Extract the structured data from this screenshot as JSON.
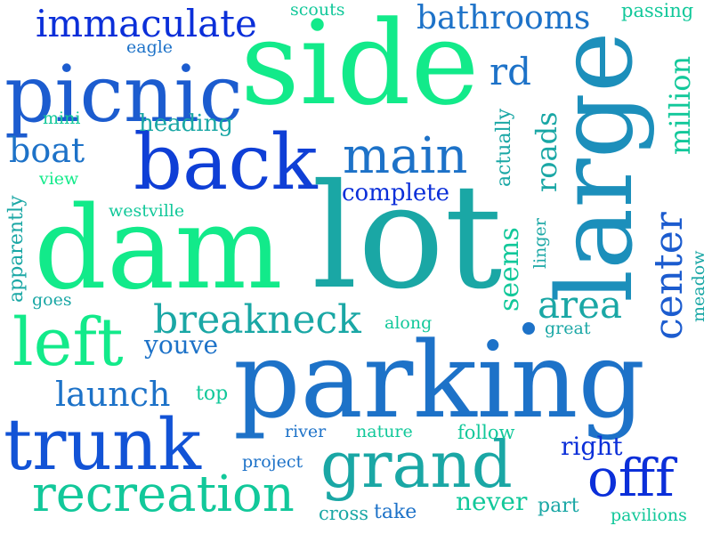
{
  "words": [
    {
      "text": "side",
      "color": "#12ea8a",
      "vertical": false
    },
    {
      "text": "lot",
      "color": "#1aa7a5",
      "vertical": false
    },
    {
      "text": "dam",
      "color": "#12ea8a",
      "vertical": false
    },
    {
      "text": "parking",
      "color": "#1d72c8",
      "vertical": false
    },
    {
      "text": "large",
      "color": "#1c8fbb",
      "vertical": true
    },
    {
      "text": "picnic",
      "color": "#1c5ccf",
      "vertical": false
    },
    {
      "text": "back",
      "color": "#0f3fd6",
      "vertical": false
    },
    {
      "text": "trunk",
      "color": "#1253d6",
      "vertical": false
    },
    {
      "text": "left",
      "color": "#12ea8a",
      "vertical": false
    },
    {
      "text": "grand",
      "color": "#1aa7a5",
      "vertical": false
    },
    {
      "text": "main",
      "color": "#1d72c8",
      "vertical": false
    },
    {
      "text": "recreation",
      "color": "#12c89a",
      "vertical": false
    },
    {
      "text": "offf",
      "color": "#0b2fd9",
      "vertical": false
    },
    {
      "text": "center",
      "color": "#1c5ccf",
      "vertical": true
    },
    {
      "text": "breakneck",
      "color": "#1aa7a5",
      "vertical": false
    },
    {
      "text": "immaculate",
      "color": "#0b2fd9",
      "vertical": false
    },
    {
      "text": "bathrooms",
      "color": "#1d72c8",
      "vertical": false
    },
    {
      "text": "area",
      "color": "#1aa7a5",
      "vertical": false
    },
    {
      "text": "launch",
      "color": "#1d72c8",
      "vertical": false
    },
    {
      "text": "rd",
      "color": "#1d72c8",
      "vertical": false
    },
    {
      "text": "boat",
      "color": "#1d72c8",
      "vertical": false
    },
    {
      "text": "million",
      "color": "#12c89a",
      "vertical": true
    },
    {
      "text": "roads",
      "color": "#1aa7a5",
      "vertical": true
    },
    {
      "text": "seems",
      "color": "#12c89a",
      "vertical": true
    },
    {
      "text": "youve",
      "color": "#1d72c8",
      "vertical": false
    },
    {
      "text": "heading",
      "color": "#1aa7a5",
      "vertical": false
    },
    {
      "text": "complete",
      "color": "#0b2fd9",
      "vertical": false
    },
    {
      "text": "apparently",
      "color": "#1aa7a5",
      "vertical": true
    },
    {
      "text": "actually",
      "color": "#1aa7a5",
      "vertical": true
    },
    {
      "text": "right",
      "color": "#0b2fd9",
      "vertical": false
    },
    {
      "text": "never",
      "color": "#12c89a",
      "vertical": false
    },
    {
      "text": "part",
      "color": "#1aa7a5",
      "vertical": false
    },
    {
      "text": "westville",
      "color": "#12c89a",
      "vertical": false
    },
    {
      "text": "scouts",
      "color": "#12c89a",
      "vertical": false
    },
    {
      "text": "passing",
      "color": "#12c89a",
      "vertical": false
    },
    {
      "text": "eagle",
      "color": "#1d72c8",
      "vertical": false
    },
    {
      "text": "mini",
      "color": "#12c89a",
      "vertical": false
    },
    {
      "text": "view",
      "color": "#12ea8a",
      "vertical": false
    },
    {
      "text": "goes",
      "color": "#1aa7a5",
      "vertical": false
    },
    {
      "text": "along",
      "color": "#12c89a",
      "vertical": false
    },
    {
      "text": "great",
      "color": "#1aa7a5",
      "vertical": false
    },
    {
      "text": "linger",
      "color": "#1aa7a5",
      "vertical": true
    },
    {
      "text": "meadow",
      "color": "#1aa7a5",
      "vertical": true
    },
    {
      "text": "top",
      "color": "#12c89a",
      "vertical": false
    },
    {
      "text": "river",
      "color": "#1d72c8",
      "vertical": false
    },
    {
      "text": "nature",
      "color": "#12c89a",
      "vertical": false
    },
    {
      "text": "follow",
      "color": "#12c89a",
      "vertical": false
    },
    {
      "text": "project",
      "color": "#1d72c8",
      "vertical": false
    },
    {
      "text": "cross",
      "color": "#1aa7a5",
      "vertical": false
    },
    {
      "text": "take",
      "color": "#1d72c8",
      "vertical": false
    },
    {
      "text": "pavilions",
      "color": "#12c89a",
      "vertical": false
    }
  ],
  "dot_color": "#1d72c8"
}
